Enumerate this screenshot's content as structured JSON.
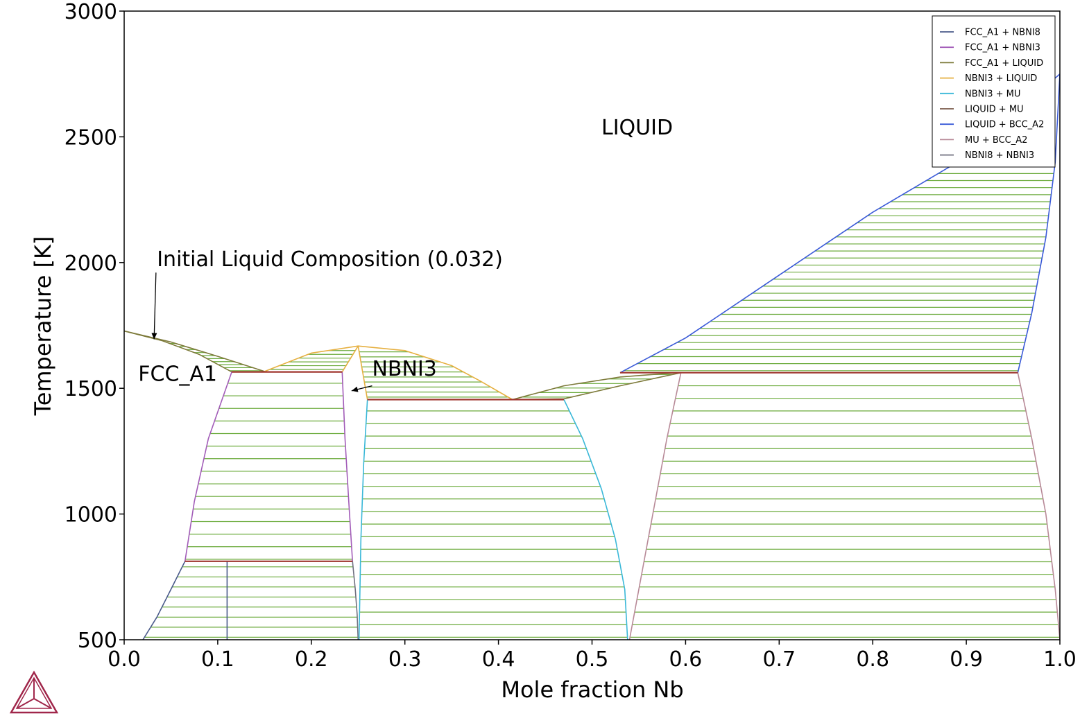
{
  "chart_data": {
    "type": "line",
    "xlabel": "Mole fraction Nb",
    "ylabel": "Temperature [K]",
    "xlim": [
      0.0,
      1.0
    ],
    "ylim": [
      500,
      3000
    ],
    "x_ticks": [
      "0.0",
      "0.1",
      "0.2",
      "0.3",
      "0.4",
      "0.5",
      "0.6",
      "0.7",
      "0.8",
      "0.9",
      "1.0"
    ],
    "y_ticks": [
      "500",
      "1000",
      "1500",
      "2000",
      "2500",
      "3000"
    ],
    "grid": false,
    "legend_position": "top-right",
    "tie_line_color": "#6aaa3a",
    "invariant_line_color": "#a0362f",
    "legend": [
      {
        "name": "FCC_A1 + NBNI8",
        "color": "#4a5a8a"
      },
      {
        "name": "FCC_A1 + NBNI3",
        "color": "#a25cb8"
      },
      {
        "name": "FCC_A1 + LIQUID",
        "color": "#7d7a3a"
      },
      {
        "name": "NBNI3 + LIQUID",
        "color": "#e6b040"
      },
      {
        "name": "NBNI3 + MU",
        "color": "#3ab8d8"
      },
      {
        "name": "LIQUID + MU",
        "color": "#7a5a4a"
      },
      {
        "name": "LIQUID + BCC_A2",
        "color": "#3a5ad8"
      },
      {
        "name": "MU + BCC_A2",
        "color": "#b88a98"
      },
      {
        "name": "NBNI8 + NBNI3",
        "color": "#707080"
      }
    ],
    "series": [
      {
        "name": "FCC_A1 + LIQUID",
        "color": "#7d7a3a",
        "segments": [
          [
            [
              0.0,
              1728
            ],
            [
              0.05,
              1684
            ],
            [
              0.1,
              1627
            ],
            [
              0.15,
              1567
            ]
          ],
          [
            [
              0.0,
              1728
            ],
            [
              0.04,
              1690
            ],
            [
              0.08,
              1635
            ],
            [
              0.115,
              1565
            ]
          ],
          [
            [
              0.415,
              1455
            ],
            [
              0.47,
              1510
            ],
            [
              0.53,
              1545
            ],
            [
              0.59,
              1562
            ]
          ],
          [
            [
              0.415,
              1455
            ],
            [
              0.47,
              1458
            ],
            [
              0.53,
              1510
            ],
            [
              0.595,
              1562
            ]
          ]
        ]
      },
      {
        "name": "NBNI3 + LIQUID",
        "color": "#e6b040",
        "segments": [
          [
            [
              0.15,
              1567
            ],
            [
              0.2,
              1640
            ],
            [
              0.25,
              1668
            ],
            [
              0.3,
              1650
            ],
            [
              0.35,
              1590
            ],
            [
              0.38,
              1530
            ],
            [
              0.415,
              1455
            ]
          ],
          [
            [
              0.233,
              1565
            ],
            [
              0.25,
              1668
            ]
          ],
          [
            [
              0.25,
              1668
            ],
            [
              0.26,
              1455
            ]
          ]
        ]
      },
      {
        "name": "FCC_A1 + NBNI3",
        "color": "#a25cb8",
        "segments": [
          [
            [
              0.115,
              1565
            ],
            [
              0.09,
              1300
            ],
            [
              0.075,
              1050
            ],
            [
              0.065,
              812
            ]
          ],
          [
            [
              0.233,
              1565
            ],
            [
              0.236,
              1300
            ],
            [
              0.24,
              1050
            ],
            [
              0.244,
              812
            ]
          ]
        ]
      },
      {
        "name": "FCC_A1 + NBNI8",
        "color": "#4a5a8a",
        "segments": [
          [
            [
              0.065,
              812
            ],
            [
              0.05,
              700
            ],
            [
              0.035,
              590
            ],
            [
              0.02,
              500
            ]
          ],
          [
            [
              0.11,
              812
            ],
            [
              0.11,
              500
            ]
          ]
        ]
      },
      {
        "name": "NBNI8 + NBNI3",
        "color": "#707080",
        "segments": [
          [
            [
              0.244,
              812
            ],
            [
              0.247,
              700
            ],
            [
              0.249,
              600
            ],
            [
              0.25,
              500
            ]
          ]
        ]
      },
      {
        "name": "NBNI3 + MU",
        "color": "#3ab8d8",
        "segments": [
          [
            [
              0.26,
              1455
            ],
            [
              0.256,
              1200
            ],
            [
              0.253,
              900
            ],
            [
              0.251,
              500
            ]
          ],
          [
            [
              0.47,
              1455
            ],
            [
              0.49,
              1300
            ],
            [
              0.51,
              1100
            ],
            [
              0.525,
              900
            ],
            [
              0.535,
              700
            ],
            [
              0.538,
              500
            ]
          ]
        ]
      },
      {
        "name": "LIQUID + BCC_A2",
        "color": "#3a5ad8",
        "segments": [
          [
            [
              0.53,
              1562
            ],
            [
              0.6,
              1700
            ],
            [
              0.7,
              1950
            ],
            [
              0.8,
              2200
            ],
            [
              0.9,
              2420
            ],
            [
              1.0,
              2750
            ]
          ],
          [
            [
              0.955,
              1562
            ],
            [
              0.97,
              1800
            ],
            [
              0.985,
              2100
            ],
            [
              0.995,
              2400
            ],
            [
              1.0,
              2750
            ]
          ]
        ]
      },
      {
        "name": "MU + BCC_A2",
        "color": "#b88a98",
        "segments": [
          [
            [
              0.595,
              1562
            ],
            [
              0.58,
              1300
            ],
            [
              0.56,
              900
            ],
            [
              0.54,
              500
            ]
          ],
          [
            [
              0.955,
              1562
            ],
            [
              0.97,
              1300
            ],
            [
              0.985,
              1000
            ],
            [
              0.995,
              700
            ],
            [
              1.0,
              500
            ]
          ]
        ]
      }
    ],
    "invariant_temperatures": [
      {
        "x": [
          0.115,
          0.233
        ],
        "y": 1565
      },
      {
        "x": [
          0.26,
          0.47
        ],
        "y": 1455
      },
      {
        "x": [
          0.53,
          0.955
        ],
        "y": 1562
      },
      {
        "x": [
          0.065,
          0.244
        ],
        "y": 812
      }
    ],
    "annotations": [
      {
        "text": "LIQUID",
        "x": 0.51,
        "y": 2510
      },
      {
        "text": "FCC_A1",
        "x": 0.015,
        "y": 1530
      },
      {
        "text": "NBNI3",
        "x": 0.265,
        "y": 1550
      },
      {
        "text": "Initial Liquid Composition (0.032)",
        "x": 0.035,
        "y": 1985
      }
    ]
  }
}
